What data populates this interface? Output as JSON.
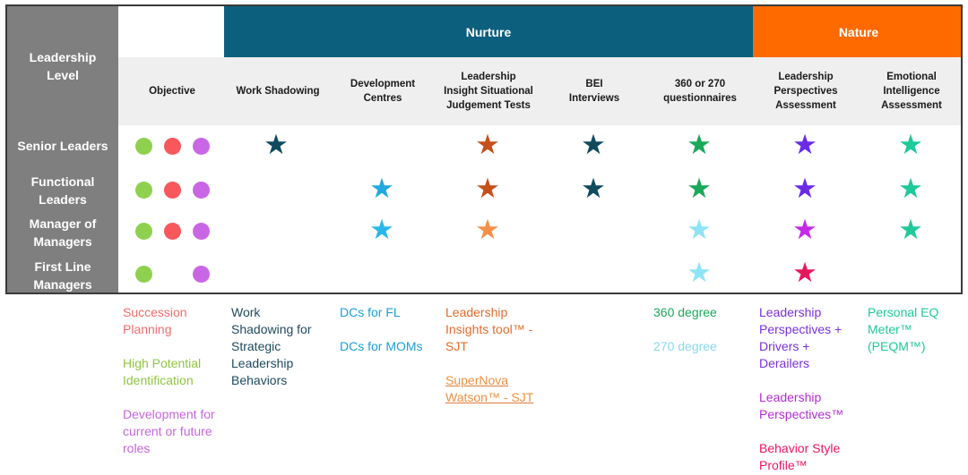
{
  "header": {
    "leadership_level": "Leadership Level",
    "nurture": "Nurture",
    "nature": "Nature",
    "columns": [
      "Objective",
      "Work Shadowing",
      "Development Centres",
      "Leadership Insight Situational Judgement Tests",
      "BEI Interviews",
      "360 or 270 questionnaires",
      "Leadership Perspectives Assessment",
      "Emotional Intelligence Assessment"
    ]
  },
  "rows": [
    {
      "label": "Senior Leaders",
      "objectives": [
        "#8fd14f",
        "#f8575c",
        "#c966e6"
      ],
      "stars": [
        "#0f4a5e",
        null,
        "#c5501a",
        "#0f4a5e",
        "#1aa85a",
        "#6a2ae6",
        "#1ec99a"
      ]
    },
    {
      "label": "Functional Leaders",
      "objectives": [
        "#8fd14f",
        "#f8575c",
        "#c966e6"
      ],
      "stars": [
        null,
        "#22a8e0",
        "#c5501a",
        "#0f4a5e",
        "#1aa85a",
        "#6a2ae6",
        "#1ec99a"
      ]
    },
    {
      "label": "Manager of Managers",
      "objectives": [
        "#8fd14f",
        "#f8575c",
        "#c966e6"
      ],
      "stars": [
        null,
        "#2ab8ea",
        "#f4904a",
        null,
        "#8ee4f4",
        "#c42ae6",
        "#1ec99a"
      ]
    },
    {
      "label": "First Line Managers",
      "objectives": [
        "#8fd14f",
        null,
        "#c966e6"
      ],
      "stars": [
        null,
        null,
        null,
        null,
        "#8ee4f4",
        "#e8175d",
        null
      ]
    }
  ],
  "legend": {
    "objective": [
      {
        "text": "Succession Planning",
        "color": "#f26b6b"
      },
      {
        "text": "High Potential Identification",
        "color": "#8dc63f"
      },
      {
        "text": "Development for current or future roles",
        "color": "#c566e0"
      }
    ],
    "work_shadowing": [
      {
        "text": "Work Shadowing for Strategic Leadership Behaviors",
        "color": "#1e4a5c"
      }
    ],
    "development_centres": [
      {
        "text": "DCs for FL",
        "color": "#1aa0d8"
      },
      {
        "text": "DCs for MOMs",
        "color": "#1aa0d8"
      }
    ],
    "sjt": [
      {
        "text": "Leadership Insights tool™ - SJT",
        "color": "#e36b2a"
      },
      {
        "text": "SuperNova Watson™ - SJT",
        "color": "#f09040"
      }
    ],
    "questionnaires": [
      {
        "text": "360 degree",
        "color": "#1aa85a"
      },
      {
        "text": "270 degree",
        "color": "#8ad8ec"
      }
    ],
    "perspectives": [
      {
        "text": "Leadership Perspectives + Drivers + Derailers",
        "color": "#7a30d8"
      },
      {
        "text": "Leadership Perspectives™",
        "color": "#b52ad8"
      },
      {
        "text": "Behavior Style Profile™",
        "color": "#e8175d"
      }
    ],
    "eq": [
      {
        "text": "Personal EQ Meter™ (PEQM™)",
        "color": "#1ec99a"
      }
    ]
  }
}
